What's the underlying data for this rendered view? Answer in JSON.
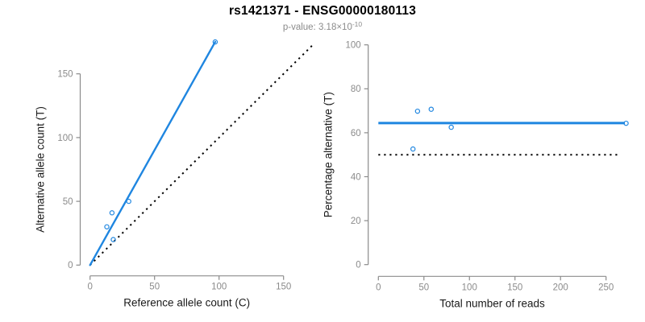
{
  "header": {
    "title": "rs1421371 - ENSG00000180113",
    "subtitle_prefix": "p-value: 3.18×10",
    "subtitle_exponent": "-10"
  },
  "colors": {
    "accent_blue": "#1f86e0",
    "axis_gray": "#8b8b8b",
    "reference_black": "#000000",
    "title_black": "#000000",
    "subtitle_gray": "#8b8b8b"
  },
  "chart_data": [
    {
      "id": "allele-count-scatter",
      "type": "scatter",
      "xlabel": "Reference allele count (C)",
      "ylabel": "Alternative allele count (T)",
      "xticks": [
        0,
        50,
        100,
        150
      ],
      "yticks": [
        0,
        50,
        100,
        150
      ],
      "xlim": [
        0,
        173
      ],
      "ylim": [
        0,
        178
      ],
      "points": [
        [
          13,
          30
        ],
        [
          17,
          41
        ],
        [
          18,
          20
        ],
        [
          30,
          50
        ],
        [
          97,
          175
        ]
      ],
      "fit_line": {
        "type": "segment",
        "x1": 0,
        "y1": 0,
        "x2": 97,
        "y2": 175,
        "slope": 1.806,
        "style": "solid"
      },
      "reference_line": {
        "type": "identity",
        "slope": 1,
        "intercept": 0,
        "style": "dotted"
      },
      "legend": "none",
      "grid": false
    },
    {
      "id": "percentage-vs-reads-scatter",
      "type": "scatter",
      "xlabel": "Total number of reads",
      "ylabel": "Percentage alternative (T)",
      "xticks": [
        0,
        50,
        100,
        150,
        200,
        250
      ],
      "yticks": [
        0,
        20,
        40,
        60,
        80,
        100
      ],
      "xlim": [
        0,
        272
      ],
      "ylim": [
        0,
        100
      ],
      "points": [
        [
          43,
          69.8
        ],
        [
          58,
          70.7
        ],
        [
          38,
          52.6
        ],
        [
          80,
          62.5
        ],
        [
          272,
          64.3
        ]
      ],
      "fit_line": {
        "type": "horizontal",
        "y": 64.4,
        "style": "solid"
      },
      "reference_line": {
        "type": "horizontal",
        "y": 50,
        "style": "dotted"
      },
      "legend": "none",
      "grid": false
    }
  ]
}
